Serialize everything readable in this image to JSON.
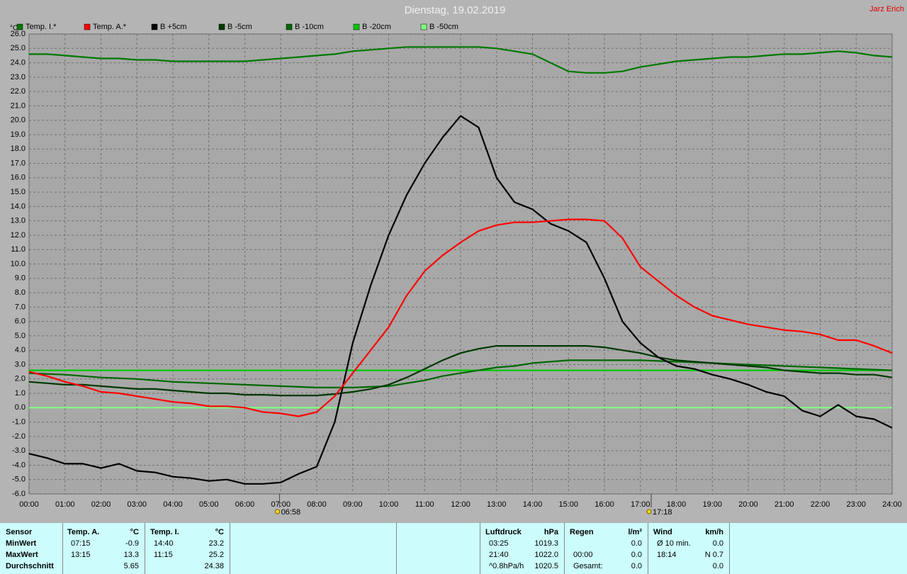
{
  "chart_data": {
    "type": "line",
    "title": "Dienstag, 19.02.2019",
    "author": "Jarz Erich",
    "y_label": "°C",
    "grid": true,
    "xlim": [
      0,
      24
    ],
    "ylim": [
      -6,
      26
    ],
    "xticks": [
      {
        "value": 0,
        "label": "00:00"
      },
      {
        "value": 1,
        "label": "01:00"
      },
      {
        "value": 2,
        "label": "02:00"
      },
      {
        "value": 3,
        "label": "03:00"
      },
      {
        "value": 4,
        "label": "04:00"
      },
      {
        "value": 5,
        "label": "05:00"
      },
      {
        "value": 6,
        "label": "06:00"
      },
      {
        "value": 7,
        "label": "07:00"
      },
      {
        "value": 8,
        "label": "08:00"
      },
      {
        "value": 9,
        "label": "09:00"
      },
      {
        "value": 10,
        "label": "10:00"
      },
      {
        "value": 11,
        "label": "11:00"
      },
      {
        "value": 12,
        "label": "12:00"
      },
      {
        "value": 13,
        "label": "13:00"
      },
      {
        "value": 14,
        "label": "14:00"
      },
      {
        "value": 15,
        "label": "15:00"
      },
      {
        "value": 16,
        "label": "16:00"
      },
      {
        "value": 17,
        "label": "17:00"
      },
      {
        "value": 18,
        "label": "18:00"
      },
      {
        "value": 19,
        "label": "19:00"
      },
      {
        "value": 20,
        "label": "20:00"
      },
      {
        "value": 21,
        "label": "21:00"
      },
      {
        "value": 22,
        "label": "22:00"
      },
      {
        "value": 23,
        "label": "23:00"
      },
      {
        "value": 24,
        "label": "24:00"
      }
    ],
    "yticks": [
      {
        "value": -6,
        "label": "-6.0"
      },
      {
        "value": -5,
        "label": "-5.0"
      },
      {
        "value": -4,
        "label": "-4.0"
      },
      {
        "value": -3,
        "label": "-3.0"
      },
      {
        "value": -2,
        "label": "-2.0"
      },
      {
        "value": -1,
        "label": "-1.0"
      },
      {
        "value": 0,
        "label": "0.0"
      },
      {
        "value": 1,
        "label": "1.0"
      },
      {
        "value": 2,
        "label": "2.0"
      },
      {
        "value": 3,
        "label": "3.0"
      },
      {
        "value": 4,
        "label": "4.0"
      },
      {
        "value": 5,
        "label": "5.0"
      },
      {
        "value": 6,
        "label": "6.0"
      },
      {
        "value": 7,
        "label": "7.0"
      },
      {
        "value": 8,
        "label": "8.0"
      },
      {
        "value": 9,
        "label": "9.0"
      },
      {
        "value": 10,
        "label": "10.0"
      },
      {
        "value": 11,
        "label": "11.0"
      },
      {
        "value": 12,
        "label": "12.0"
      },
      {
        "value": 13,
        "label": "13.0"
      },
      {
        "value": 14,
        "label": "14.0"
      },
      {
        "value": 15,
        "label": "15.0"
      },
      {
        "value": 16,
        "label": "16.0"
      },
      {
        "value": 17,
        "label": "17.0"
      },
      {
        "value": 18,
        "label": "18.0"
      },
      {
        "value": 19,
        "label": "19.0"
      },
      {
        "value": 20,
        "label": "20.0"
      },
      {
        "value": 21,
        "label": "21.0"
      },
      {
        "value": 22,
        "label": "22.0"
      },
      {
        "value": 23,
        "label": "23.0"
      },
      {
        "value": 24,
        "label": "24.0"
      },
      {
        "value": 25,
        "label": "25.0"
      },
      {
        "value": 26,
        "label": "26.0"
      }
    ],
    "annotations": [
      {
        "x": 6.967,
        "text": "06:58"
      },
      {
        "x": 17.3,
        "text": "17:18"
      }
    ],
    "x": [
      0,
      0.5,
      1,
      1.5,
      2,
      2.5,
      3,
      3.5,
      4,
      4.5,
      5,
      5.5,
      6,
      6.5,
      7,
      7.5,
      8,
      8.5,
      9,
      9.5,
      10,
      10.5,
      11,
      11.5,
      12,
      12.5,
      13,
      13.5,
      14,
      14.5,
      15,
      15.5,
      16,
      16.5,
      17,
      17.5,
      18,
      18.5,
      19,
      19.5,
      20,
      20.5,
      21,
      21.5,
      22,
      22.5,
      23,
      23.5,
      24
    ],
    "series": [
      {
        "name": "Temp. I.*",
        "color": "#007800",
        "values": [
          24.6,
          24.6,
          24.5,
          24.4,
          24.3,
          24.3,
          24.2,
          24.2,
          24.1,
          24.1,
          24.1,
          24.1,
          24.1,
          24.2,
          24.3,
          24.4,
          24.5,
          24.6,
          24.8,
          24.9,
          25.0,
          25.1,
          25.1,
          25.1,
          25.1,
          25.1,
          25.0,
          24.8,
          24.6,
          24.0,
          23.4,
          23.3,
          23.3,
          23.4,
          23.7,
          23.9,
          24.1,
          24.2,
          24.3,
          24.4,
          24.4,
          24.5,
          24.6,
          24.6,
          24.7,
          24.8,
          24.7,
          24.5,
          24.4
        ]
      },
      {
        "name": "Temp. A.*",
        "color": "#ff0000",
        "values": [
          2.5,
          2.2,
          1.8,
          1.5,
          1.1,
          1.0,
          0.8,
          0.6,
          0.4,
          0.3,
          0.1,
          0.1,
          0.0,
          -0.3,
          -0.4,
          -0.6,
          -0.3,
          0.8,
          2.4,
          4.0,
          5.6,
          7.8,
          9.5,
          10.6,
          11.5,
          12.3,
          12.7,
          12.9,
          12.9,
          13.0,
          13.1,
          13.1,
          13.0,
          11.8,
          9.8,
          8.8,
          7.8,
          7.0,
          6.4,
          6.1,
          5.8,
          5.6,
          5.4,
          5.3,
          5.1,
          4.7,
          4.7,
          4.3,
          3.8
        ]
      },
      {
        "name": "B +5cm",
        "color": "#000000",
        "values": [
          -3.2,
          -3.5,
          -3.9,
          -3.9,
          -4.2,
          -3.9,
          -4.4,
          -4.5,
          -4.8,
          -4.9,
          -5.1,
          -5.0,
          -5.3,
          -5.3,
          -5.2,
          -4.6,
          -4.1,
          -1.0,
          4.5,
          8.5,
          12.0,
          14.8,
          17.0,
          18.8,
          20.3,
          19.5,
          16.0,
          14.3,
          13.8,
          12.8,
          12.3,
          11.5,
          9.0,
          6.0,
          4.5,
          3.5,
          2.9,
          2.7,
          2.3,
          2.0,
          1.6,
          1.1,
          0.8,
          -0.2,
          -0.6,
          0.2,
          -0.6,
          -0.8,
          -1.4
        ]
      },
      {
        "name": "B -5cm",
        "color": "#003800",
        "values": [
          1.8,
          1.7,
          1.6,
          1.6,
          1.5,
          1.4,
          1.3,
          1.3,
          1.2,
          1.1,
          1.0,
          1.0,
          0.9,
          0.9,
          0.85,
          0.85,
          0.85,
          0.95,
          1.1,
          1.3,
          1.6,
          2.1,
          2.7,
          3.3,
          3.8,
          4.1,
          4.3,
          4.3,
          4.3,
          4.3,
          4.3,
          4.3,
          4.2,
          4.0,
          3.8,
          3.5,
          3.3,
          3.2,
          3.1,
          3.0,
          2.9,
          2.8,
          2.6,
          2.5,
          2.4,
          2.4,
          2.3,
          2.3,
          2.1
        ]
      },
      {
        "name": "B -10cm",
        "color": "#006800",
        "values": [
          2.4,
          2.35,
          2.3,
          2.2,
          2.1,
          2.05,
          2.0,
          1.9,
          1.8,
          1.75,
          1.7,
          1.65,
          1.6,
          1.55,
          1.5,
          1.45,
          1.4,
          1.4,
          1.4,
          1.45,
          1.5,
          1.7,
          1.9,
          2.2,
          2.4,
          2.6,
          2.8,
          2.9,
          3.1,
          3.2,
          3.3,
          3.3,
          3.3,
          3.3,
          3.3,
          3.25,
          3.2,
          3.15,
          3.1,
          3.05,
          3.0,
          2.95,
          2.9,
          2.85,
          2.8,
          2.75,
          2.7,
          2.65,
          2.6
        ]
      },
      {
        "name": "B -20cm",
        "color": "#00c800",
        "values": [
          2.6,
          2.6,
          2.6,
          2.6,
          2.6,
          2.6,
          2.6,
          2.6,
          2.6,
          2.6,
          2.6,
          2.6,
          2.6,
          2.6,
          2.6,
          2.6,
          2.6,
          2.6,
          2.6,
          2.6,
          2.6,
          2.6,
          2.6,
          2.6,
          2.6,
          2.6,
          2.6,
          2.6,
          2.6,
          2.6,
          2.6,
          2.6,
          2.6,
          2.6,
          2.6,
          2.6,
          2.6,
          2.6,
          2.6,
          2.6,
          2.6,
          2.6,
          2.6,
          2.6,
          2.6,
          2.6,
          2.6,
          2.6,
          2.6
        ]
      },
      {
        "name": "B -50cm",
        "color": "#80ff80",
        "values": [
          0,
          0,
          0,
          0,
          0,
          0,
          0,
          0,
          0,
          0,
          0,
          0,
          0,
          0,
          0,
          0,
          0,
          0,
          0,
          0,
          0,
          0,
          0,
          0,
          0,
          0,
          0,
          0,
          0,
          0,
          0,
          0,
          0,
          0,
          0,
          0,
          0,
          0,
          0,
          0,
          0,
          0,
          0,
          0,
          0,
          0,
          0,
          0,
          0
        ]
      }
    ]
  },
  "stats": {
    "sensor": {
      "header": "Sensor",
      "rows": [
        "MinWert",
        "MaxWert",
        "Durchschnitt"
      ]
    },
    "groups": [
      {
        "header": "Temp. A.",
        "unit": "°C",
        "rows": [
          [
            "07:15",
            "-0.9"
          ],
          [
            "13:15",
            "13.3"
          ],
          [
            null,
            "5.65"
          ]
        ]
      },
      {
        "header": "Temp. I.",
        "unit": "°C",
        "rows": [
          [
            "14:40",
            "23.2"
          ],
          [
            "11:15",
            "25.2"
          ],
          [
            null,
            "24.38"
          ]
        ]
      },
      {
        "header": "Luftdruck",
        "unit": "hPa",
        "rows": [
          [
            "03:25",
            "1019.3"
          ],
          [
            "21:40",
            "1022.0"
          ],
          [
            "^0.8hPa/h",
            "1020.5"
          ]
        ]
      },
      {
        "header": "Regen",
        "unit": "l/m²",
        "rows": [
          [
            null,
            "0.0"
          ],
          [
            "00:00",
            "0.0"
          ],
          [
            "Gesamt:",
            "0.0"
          ]
        ]
      },
      {
        "header": "Wind",
        "unit": "km/h",
        "rows": [
          [
            "Ø 10 min.",
            "0.0"
          ],
          [
            "18:14",
            "N 0.7"
          ],
          [
            null,
            "0.0"
          ]
        ]
      }
    ]
  }
}
